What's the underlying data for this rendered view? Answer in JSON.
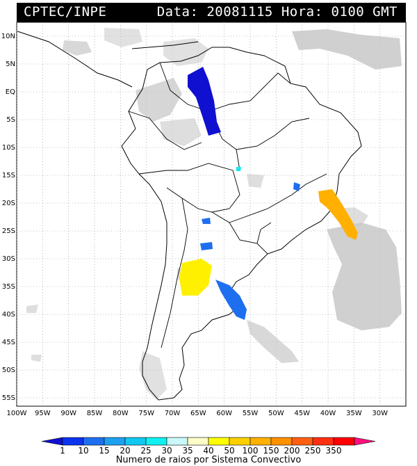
{
  "header": {
    "agency": "CPTEC/INPE",
    "date_label": "Data:",
    "date_value": "20081115",
    "hour_label": "Hora:",
    "hour_value": "0100 GMT"
  },
  "map": {
    "lat_labels": [
      "10N",
      "5N",
      "EQ",
      "5S",
      "10S",
      "15S",
      "20S",
      "25S",
      "30S",
      "35S",
      "40S",
      "45S",
      "50S",
      "55S"
    ],
    "lon_labels": [
      "100W",
      "95W",
      "90W",
      "85W",
      "80W",
      "75W",
      "70W",
      "65W",
      "60W",
      "55W",
      "50W",
      "45W",
      "40W",
      "35W",
      "30W"
    ],
    "lat_values": [
      10,
      5,
      0,
      -5,
      -10,
      -15,
      -20,
      -25,
      -30,
      -35,
      -40,
      -45,
      -50,
      -55
    ],
    "lon_values": [
      -100,
      -95,
      -90,
      -85,
      -80,
      -75,
      -70,
      -65,
      -60,
      -55,
      -50,
      -45,
      -40,
      -35,
      -30
    ],
    "lat_range": [
      -56.5,
      12.5
    ],
    "lon_range": [
      -100,
      -25
    ],
    "grid": true
  },
  "legend": {
    "values": [
      "1",
      "10",
      "15",
      "20",
      "25",
      "30",
      "35",
      "40",
      "50",
      "100",
      "150",
      "200",
      "250",
      "350"
    ],
    "colors": [
      "#1010d0",
      "#0b33f0",
      "#1e6ef0",
      "#1ea0f0",
      "#10c8f0",
      "#10f0f0",
      "#c8f8f8",
      "#fdfdc8",
      "#fffd00",
      "#ffd000",
      "#ffb000",
      "#ff9000",
      "#ff6010",
      "#ff3010",
      "#ff0000",
      "#ff1080"
    ],
    "caption": "Numero de raios por Sistema Convectivo"
  },
  "colors": {
    "land_outline": "#000000",
    "clouds": "#c8c8c8"
  }
}
